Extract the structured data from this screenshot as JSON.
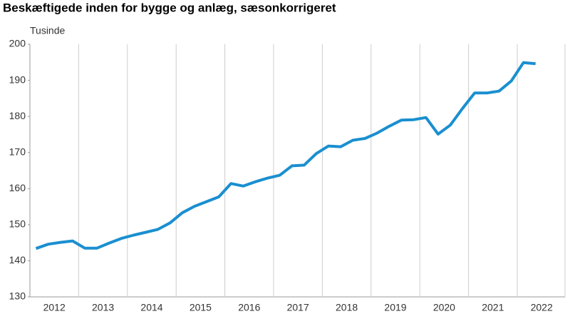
{
  "chart_data": {
    "type": "line",
    "title": "Beskæftigede inden for bygge og anlæg, sæsonkorrigeret",
    "y_label": "Tusinde",
    "categories": [
      "2012",
      null,
      null,
      null,
      "2013",
      null,
      null,
      null,
      "2014",
      null,
      null,
      null,
      "2015",
      null,
      null,
      null,
      "2016",
      null,
      null,
      null,
      "2017",
      null,
      null,
      null,
      "2018",
      null,
      null,
      null,
      "2019",
      null,
      null,
      null,
      "2020",
      null,
      null,
      null,
      "2021",
      null,
      null,
      null,
      "2022",
      null
    ],
    "series": [
      {
        "color": "#1a8fd0",
        "values": [
          143.4,
          144.6,
          145.1,
          145.5,
          143.5,
          143.5,
          144.9,
          146.2,
          147.1,
          147.9,
          148.7,
          150.5,
          153.3,
          155.1,
          156.4,
          157.7,
          161.4,
          160.7,
          161.9,
          162.9,
          163.7,
          166.3,
          166.5,
          169.7,
          171.8,
          171.6,
          173.4,
          173.9,
          175.4,
          177.3,
          179.0,
          179.1,
          179.7,
          175.1,
          177.6,
          182.2,
          186.5,
          186.5,
          187.0,
          189.8,
          194.9,
          194.6
        ]
      }
    ],
    "ylim": [
      130,
      200
    ],
    "yticks": [
      130,
      140,
      150,
      160,
      170,
      180,
      190,
      200
    ]
  }
}
